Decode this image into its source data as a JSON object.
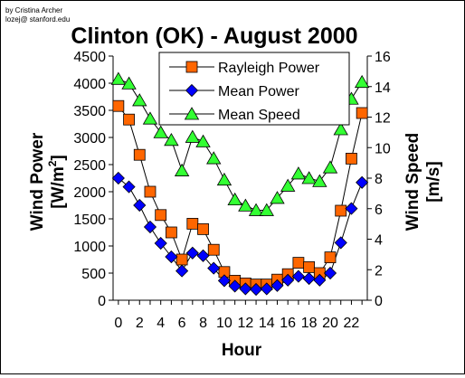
{
  "credit": {
    "line1": "by Cristina Archer",
    "line2": "lozej@ stanford.edu"
  },
  "chart_data": {
    "type": "line",
    "title": "Clinton (OK) - August 2000",
    "xlabel": "Hour",
    "ylabel_left_main": "Wind Power",
    "ylabel_left_unit": "[W/m",
    "ylabel_left_unit_sup": "2",
    "ylabel_left_unit_end": "]",
    "ylabel_right_main": "Wind Speed",
    "ylabel_right_unit": "[m/s]",
    "xlim": [
      -0.5,
      23.5
    ],
    "ylim_left": [
      0,
      4500
    ],
    "ylim_right": [
      0,
      16
    ],
    "x_ticks": [
      0,
      2,
      4,
      6,
      8,
      10,
      12,
      14,
      16,
      18,
      20,
      22
    ],
    "x_tick_labels": [
      "0",
      "2",
      "4",
      "6",
      "8",
      "10",
      "12",
      "14",
      "16",
      "18",
      "20",
      "22"
    ],
    "y_left_ticks": [
      0,
      500,
      1000,
      1500,
      2000,
      2500,
      3000,
      3500,
      4000,
      4500
    ],
    "y_left_tick_labels": [
      "0",
      "500",
      "1000",
      "1500",
      "2000",
      "2500",
      "3000",
      "3500",
      "4000",
      "4500"
    ],
    "y_right_ticks": [
      0,
      2,
      4,
      6,
      8,
      10,
      12,
      14,
      16
    ],
    "y_right_tick_labels": [
      "0",
      "2",
      "4",
      "6",
      "8",
      "10",
      "12",
      "14",
      "16"
    ],
    "grid": false,
    "legend_position": "top-center",
    "x": [
      0,
      1,
      2,
      3,
      4,
      5,
      6,
      7,
      8,
      9,
      10,
      11,
      12,
      13,
      14,
      15,
      16,
      17,
      18,
      19,
      20,
      21,
      22,
      23
    ],
    "series": [
      {
        "name": "Rayleigh Power",
        "axis": "left",
        "marker": "square",
        "color": "#ff6600",
        "values": [
          3580,
          3330,
          2680,
          2000,
          1570,
          1250,
          750,
          1410,
          1310,
          930,
          520,
          360,
          310,
          290,
          290,
          380,
          480,
          690,
          610,
          500,
          790,
          1650,
          2610,
          3450
        ]
      },
      {
        "name": "Mean Power",
        "axis": "left",
        "marker": "diamond",
        "color": "#0000ff",
        "values": [
          2250,
          2090,
          1750,
          1350,
          1050,
          800,
          540,
          870,
          820,
          590,
          360,
          260,
          210,
          200,
          210,
          270,
          370,
          440,
          400,
          370,
          500,
          1060,
          1690,
          2170
        ]
      },
      {
        "name": "Mean Speed",
        "axis": "right",
        "marker": "triangle",
        "color": "#33ff33",
        "values": [
          14.5,
          14.2,
          13.1,
          11.9,
          11.0,
          10.5,
          8.5,
          10.7,
          10.4,
          9.3,
          7.9,
          6.6,
          6.2,
          5.9,
          5.9,
          6.7,
          7.5,
          8.3,
          8.0,
          7.8,
          8.7,
          11.2,
          13.2,
          14.3
        ]
      }
    ]
  }
}
